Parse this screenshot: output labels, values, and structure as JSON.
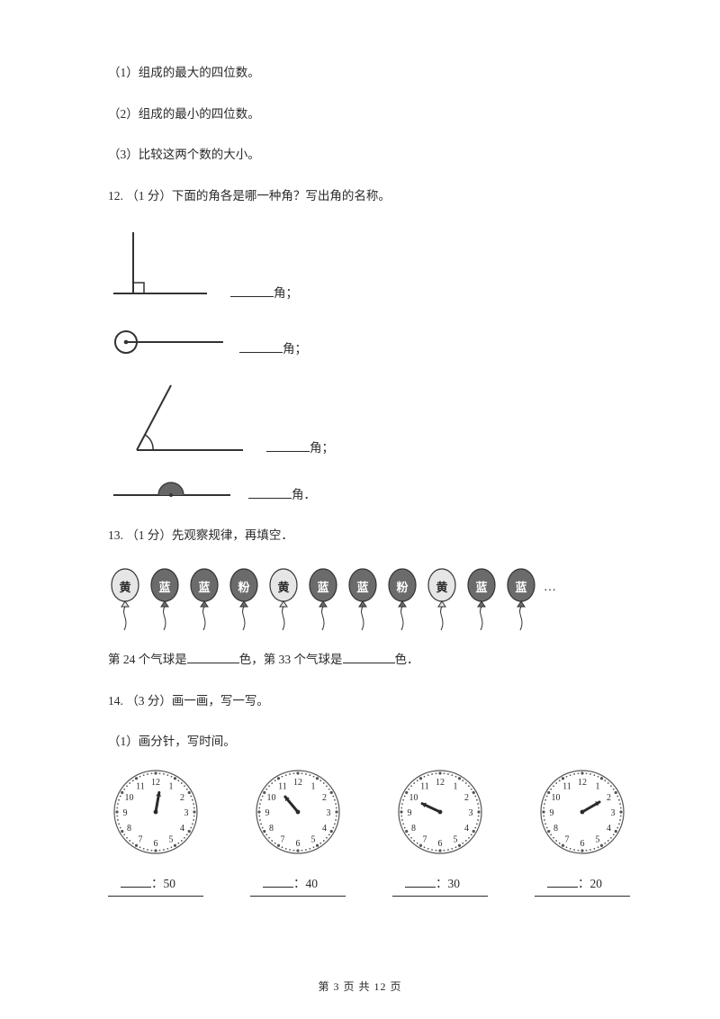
{
  "q11": {
    "p1": "（1）组成的最大的四位数。",
    "p2": "（2）组成的最小的四位数。",
    "p3": "（3）比较这两个数的大小。"
  },
  "q12": {
    "stem": "12.  （1 分）下面的角各是哪一种角？写出角的名称。",
    "suffix1": "角；",
    "suffix2": "角；",
    "suffix3": "角；",
    "suffix4": "角．",
    "angle_stroke": "#333333",
    "angle_stroke_w": 2
  },
  "q13": {
    "stem": "13.  （1 分）先观察规律，再填空．",
    "pattern": [
      "黄",
      "蓝",
      "蓝",
      "粉",
      "黄",
      "蓝",
      "蓝",
      "粉",
      "黄",
      "蓝",
      "蓝"
    ],
    "dark_chars": [
      "蓝",
      "粉"
    ],
    "light_fill": "#e6e6e6",
    "dark_fill": "#6b6b6b",
    "stroke": "#333333",
    "fill_pre": "第 24 个气球是",
    "fill_mid": "色，第 33 个气球是",
    "fill_post": "色．",
    "dots": "…"
  },
  "q14": {
    "stem": "14.  （3 分）画一画，写一写。",
    "sub1": "（1）画分针，写时间。",
    "clocks": [
      {
        "hour_angle": -80,
        "caption": "：50"
      },
      {
        "hour_angle": -130,
        "caption": "：40"
      },
      {
        "hour_angle": -155,
        "caption": "：30"
      },
      {
        "hour_angle": -30,
        "caption": "：20"
      }
    ],
    "face_stroke": "#555555",
    "dot_color": "#555555",
    "hand_color": "#2a2a2a"
  },
  "footer": {
    "text": "第 3 页 共 12 页"
  }
}
